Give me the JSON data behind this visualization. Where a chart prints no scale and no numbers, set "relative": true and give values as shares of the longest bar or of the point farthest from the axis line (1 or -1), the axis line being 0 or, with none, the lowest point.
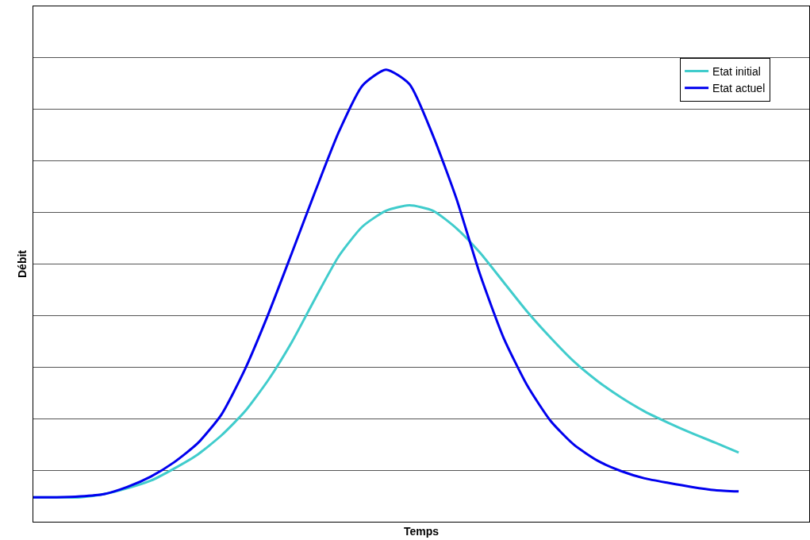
{
  "chart_data": {
    "type": "line",
    "relative": true,
    "xlabel": "Temps",
    "ylabel": "Débit",
    "grid": "y",
    "legend": "top right",
    "categories": [
      null,
      null,
      null,
      null,
      null,
      null,
      null,
      null,
      null,
      null,
      null,
      null,
      null,
      null,
      null,
      null,
      null,
      null,
      null,
      null,
      null,
      null,
      null,
      null,
      null,
      null,
      null,
      null,
      null,
      null,
      null,
      null,
      null,
      null
    ],
    "series": [
      {
        "name": "Etat initial",
        "color": "#40cccc",
        "values": [
          0.054,
          0.054,
          0.054,
          0.061,
          0.074,
          0.091,
          0.118,
          0.149,
          0.191,
          0.244,
          0.314,
          0.398,
          0.495,
          0.588,
          0.653,
          0.688,
          0.7,
          0.688,
          0.649,
          0.595,
          0.53,
          0.465,
          0.407,
          0.354,
          0.311,
          0.275,
          0.244,
          0.219,
          0.196,
          0.175,
          0.153,
          null,
          null,
          null
        ]
      },
      {
        "name": "Etat actuel",
        "color": "#0000ee",
        "values": [
          0.054,
          0.054,
          0.056,
          0.061,
          0.077,
          0.1,
          0.132,
          0.174,
          0.237,
          0.337,
          0.46,
          0.595,
          0.732,
          0.863,
          0.965,
          1.0,
          0.968,
          0.854,
          0.714,
          0.547,
          0.407,
          0.302,
          0.223,
          0.17,
          0.135,
          0.112,
          0.096,
          0.086,
          0.077,
          0.07,
          0.067,
          null,
          null,
          null
        ]
      }
    ]
  }
}
